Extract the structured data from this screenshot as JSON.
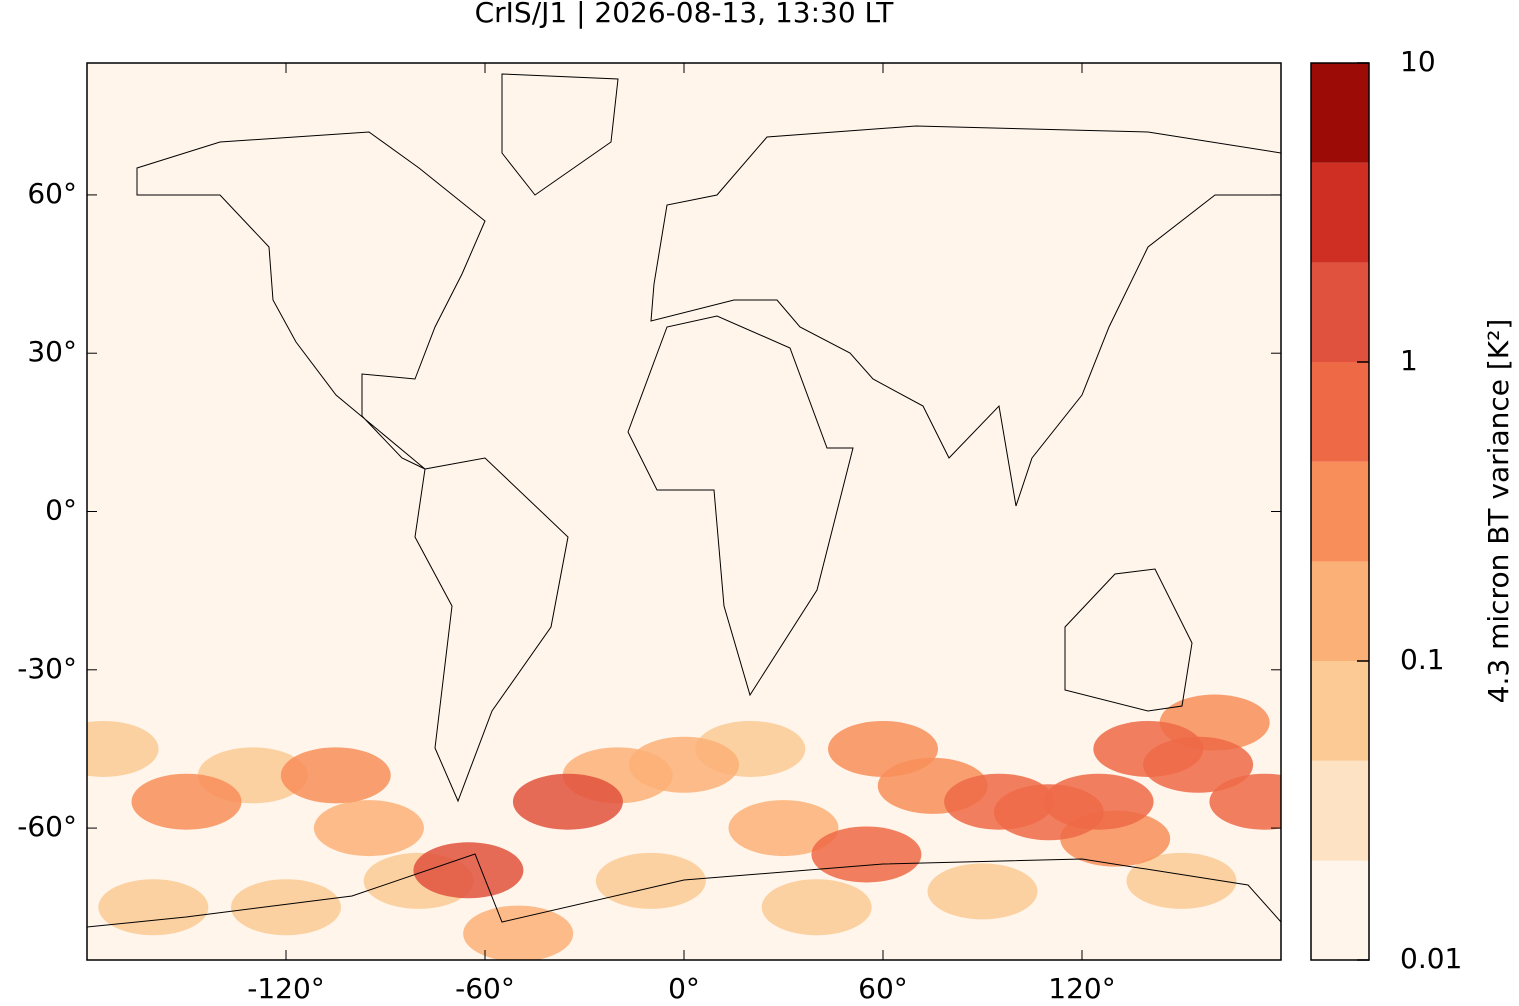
{
  "chart_data": {
    "type": "map",
    "title": "CrIS/J1 | 2026-08-13, 13:30 LT",
    "xlim": [
      -180,
      180
    ],
    "ylim": [
      -85,
      85
    ],
    "xticks": [
      {
        "value": -120,
        "label": "-120°"
      },
      {
        "value": -60,
        "label": "-60°"
      },
      {
        "value": 0,
        "label": "0°"
      },
      {
        "value": 60,
        "label": "60°"
      },
      {
        "value": 120,
        "label": "120°"
      }
    ],
    "yticks": [
      {
        "value": -60,
        "label": "-60°"
      },
      {
        "value": -30,
        "label": "-30°"
      },
      {
        "value": 0,
        "label": "0°"
      },
      {
        "value": 30,
        "label": "30°"
      },
      {
        "value": 60,
        "label": "60°"
      }
    ],
    "colorbar": {
      "label": "4.3 micron BT variance [K²]",
      "scale": "log",
      "lim": [
        0.01,
        10
      ],
      "ticks": [
        0.01,
        0.1,
        1,
        10
      ],
      "levels": [
        0.01,
        0.0215,
        0.0464,
        0.1,
        0.215,
        0.464,
        1,
        2.15,
        4.64,
        10
      ],
      "colors": [
        "#fff5eb",
        "#fde2c4",
        "#fcca94",
        "#fbb077",
        "#f88e59",
        "#ee6a47",
        "#e0523d",
        "#cf2e22",
        "#9c0b05"
      ]
    },
    "hotspots": [
      {
        "lon": -175,
        "lat": -45,
        "value": 0.05
      },
      {
        "lon": -130,
        "lat": -50,
        "value": 0.05
      },
      {
        "lon": -160,
        "lat": -75,
        "value": 0.05
      },
      {
        "lon": -120,
        "lat": -75,
        "value": 0.05
      },
      {
        "lon": -80,
        "lat": -70,
        "value": 0.05
      },
      {
        "lon": -10,
        "lat": -70,
        "value": 0.05
      },
      {
        "lon": 20,
        "lat": -45,
        "value": 0.05
      },
      {
        "lon": 150,
        "lat": -70,
        "value": 0.05
      },
      {
        "lon": 90,
        "lat": -72,
        "value": 0.05
      },
      {
        "lon": 40,
        "lat": -75,
        "value": 0.05
      },
      {
        "lon": -95,
        "lat": -60,
        "value": 0.1
      },
      {
        "lon": -20,
        "lat": -50,
        "value": 0.1
      },
      {
        "lon": 30,
        "lat": -60,
        "value": 0.1
      },
      {
        "lon": -50,
        "lat": -80,
        "value": 0.1
      },
      {
        "lon": 0,
        "lat": -48,
        "value": 0.2
      },
      {
        "lon": -150,
        "lat": -55,
        "value": 0.3
      },
      {
        "lon": -105,
        "lat": -50,
        "value": 0.3
      },
      {
        "lon": 60,
        "lat": -45,
        "value": 0.3
      },
      {
        "lon": 75,
        "lat": -52,
        "value": 0.3
      },
      {
        "lon": 160,
        "lat": -40,
        "value": 0.3
      },
      {
        "lon": 130,
        "lat": -62,
        "value": 0.3
      },
      {
        "lon": 55,
        "lat": -65,
        "value": 0.5
      },
      {
        "lon": 110,
        "lat": -57,
        "value": 0.5
      },
      {
        "lon": 140,
        "lat": -45,
        "value": 0.5
      },
      {
        "lon": 175,
        "lat": -55,
        "value": 0.6
      },
      {
        "lon": 125,
        "lat": -55,
        "value": 0.7
      },
      {
        "lon": 95,
        "lat": -55,
        "value": 0.8
      },
      {
        "lon": 155,
        "lat": -48,
        "value": 0.8
      },
      {
        "lon": -65,
        "lat": -68,
        "value": 1
      },
      {
        "lon": -35,
        "lat": -55,
        "value": 2
      }
    ]
  }
}
